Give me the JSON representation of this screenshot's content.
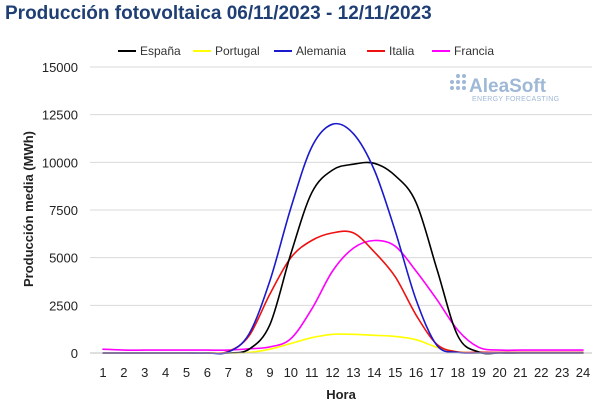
{
  "chart_data": {
    "type": "line",
    "title": "Producción fotovoltaica 06/11/2023 - 12/11/2023",
    "xlabel": "Hora",
    "ylabel": "Producción media (MWh)",
    "ylim": [
      0,
      15000
    ],
    "yticks": [
      "0",
      "2500",
      "5000",
      "7500",
      "10000",
      "12500",
      "15000"
    ],
    "ytick_values": [
      0,
      2500,
      5000,
      7500,
      10000,
      12500,
      15000
    ],
    "x": [
      "1",
      "2",
      "3",
      "4",
      "5",
      "6",
      "7",
      "8",
      "9",
      "10",
      "11",
      "12",
      "13",
      "14",
      "15",
      "16",
      "17",
      "18",
      "19",
      "20",
      "21",
      "22",
      "23",
      "24"
    ],
    "grid": "horizontal",
    "legend_position": "top",
    "series": [
      {
        "name": "España",
        "color": "#000000",
        "values": [
          0,
          0,
          0,
          0,
          0,
          0,
          0,
          200,
          1500,
          5200,
          8400,
          9600,
          9900,
          9950,
          9300,
          7900,
          4400,
          900,
          50,
          0,
          0,
          0,
          0,
          0
        ]
      },
      {
        "name": "Portugal",
        "color": "#ffff00",
        "values": [
          0,
          0,
          0,
          0,
          0,
          0,
          0,
          30,
          200,
          500,
          800,
          980,
          980,
          930,
          870,
          700,
          300,
          60,
          0,
          0,
          0,
          0,
          0,
          0
        ]
      },
      {
        "name": "Alemania",
        "color": "#1a1acc",
        "values": [
          0,
          0,
          0,
          0,
          0,
          0,
          50,
          1000,
          3800,
          7600,
          10800,
          12000,
          11500,
          9600,
          6400,
          2800,
          400,
          30,
          0,
          0,
          0,
          0,
          0,
          0
        ]
      },
      {
        "name": "Italia",
        "color": "#ee1111",
        "values": [
          0,
          0,
          0,
          0,
          0,
          0,
          80,
          900,
          3100,
          5000,
          5900,
          6300,
          6300,
          5300,
          4000,
          2000,
          450,
          50,
          40,
          30,
          30,
          30,
          30,
          30
        ]
      },
      {
        "name": "Francia",
        "color": "#ff00ff",
        "values": [
          200,
          150,
          150,
          150,
          150,
          150,
          150,
          220,
          320,
          750,
          2300,
          4300,
          5500,
          5900,
          5600,
          4300,
          2800,
          1200,
          300,
          150,
          150,
          150,
          150,
          150
        ]
      }
    ]
  },
  "logo": {
    "main": "AleaSoft",
    "sub": "ENERGY FORECASTING"
  }
}
